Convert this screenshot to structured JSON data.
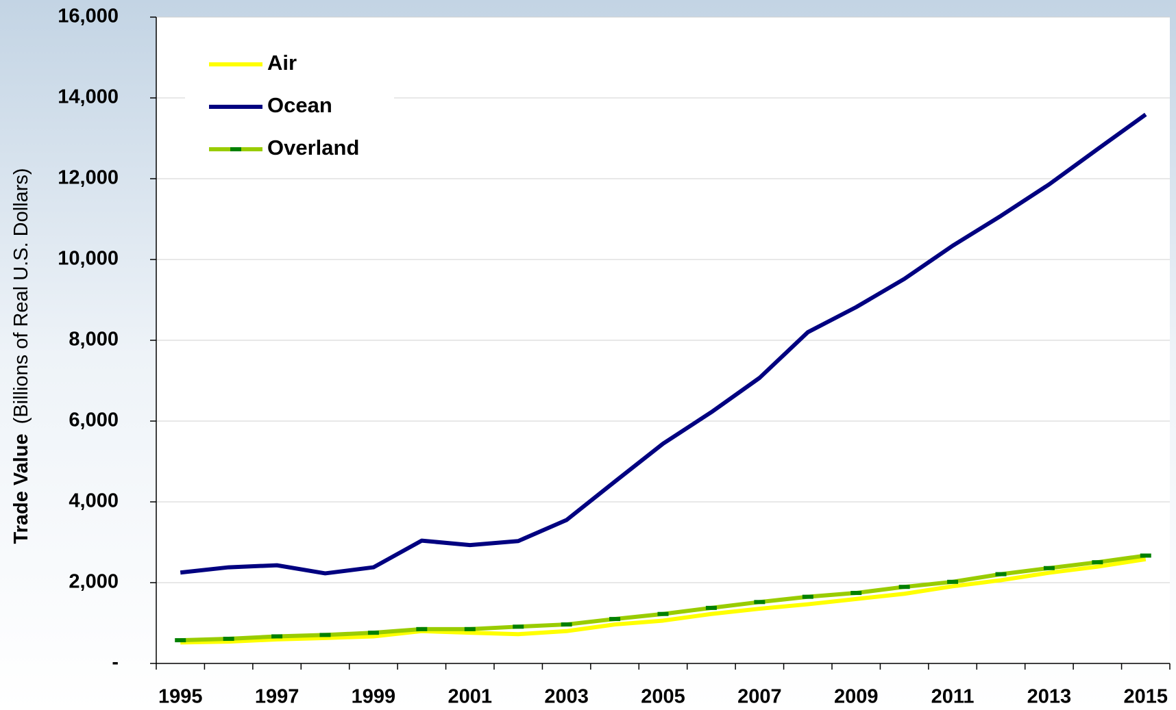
{
  "chart_data": {
    "type": "line",
    "ylabel": "Trade Value",
    "ylabel_unit": "(Billions of Real U.S. Dollars)",
    "categories": [
      "1995",
      null,
      "1997",
      null,
      "1999",
      null,
      "2001",
      null,
      "2003",
      null,
      "2005",
      null,
      "2007",
      null,
      "2009",
      null,
      "2011",
      null,
      "2013",
      null,
      "2015"
    ],
    "series": [
      {
        "name": "Air",
        "color": "#ffff00",
        "values": [
          520,
          540,
          595,
          630,
          670,
          800,
          760,
          725,
          800,
          965,
          1060,
          1225,
          1355,
          1465,
          1595,
          1725,
          1910,
          2060,
          2245,
          2395,
          2580
        ]
      },
      {
        "name": "Ocean",
        "color": "#000080",
        "values": [
          2250,
          2380,
          2430,
          2230,
          2380,
          3040,
          2930,
          3030,
          3550,
          4500,
          5440,
          6220,
          7070,
          8200,
          8820,
          9520,
          10340,
          11080,
          11860,
          12730,
          13590
        ]
      },
      {
        "name": "Overland",
        "color": "#99cc00",
        "marker_color": "#008000",
        "values": [
          575,
          610,
          670,
          705,
          760,
          850,
          850,
          910,
          965,
          1100,
          1225,
          1375,
          1520,
          1650,
          1745,
          1895,
          2020,
          2210,
          2360,
          2505,
          2670
        ]
      }
    ],
    "ylim": [
      0,
      16000
    ],
    "yticks": [
      {
        "value": 0,
        "label": "-"
      },
      {
        "value": 2000,
        "label": "2,000"
      },
      {
        "value": 4000,
        "label": "4,000"
      },
      {
        "value": 6000,
        "label": "6,000"
      },
      {
        "value": 8000,
        "label": "8,000"
      },
      {
        "value": 10000,
        "label": "10,000"
      },
      {
        "value": 12000,
        "label": "12,000"
      },
      {
        "value": 14000,
        "label": "14,000"
      },
      {
        "value": 16000,
        "label": "16,000"
      }
    ],
    "grid": true,
    "legend": "top-left"
  }
}
